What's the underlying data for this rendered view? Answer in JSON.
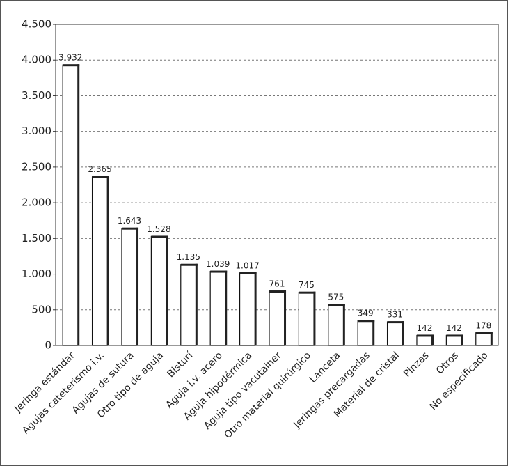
{
  "chart_data": {
    "type": "bar",
    "categories": [
      "Jeringa estándar",
      "Agujas cateterismo i.v.",
      "Agujas de sutura",
      "Otro tipo de aguja",
      "Bisturí",
      "Aguja i.v. acero",
      "Aguja hipodérmica",
      "Aguja tipo vacutainer",
      "Otro material quirúrgico",
      "Lanceta",
      "Jeringas precargadas",
      "Material de cristal",
      "Pinzas",
      "Otros",
      "No especificado"
    ],
    "values": [
      3932,
      2365,
      1643,
      1528,
      1135,
      1039,
      1017,
      761,
      745,
      575,
      349,
      331,
      142,
      142,
      178
    ],
    "value_labels": [
      "3.932",
      "2.365",
      "1.643",
      "1.528",
      "1.135",
      "1.039",
      "1.017",
      "761",
      "745",
      "575",
      "349",
      "331",
      "142",
      "142",
      "178"
    ],
    "color": "#ffffff",
    "ylim": [
      0,
      4500
    ],
    "yticks": [
      0,
      {
        "value": 500,
        "label": "500"
      },
      {
        "value": 1000,
        "label": "1.000"
      },
      {
        "value": 1500,
        "label": "1.500"
      },
      {
        "value": 2000,
        "label": "2.000"
      },
      {
        "value": 2500,
        "label": "2.500"
      },
      {
        "value": 3000,
        "label": "3.000"
      },
      {
        "value": 3500,
        "label": "3.500"
      },
      {
        "value": 4000,
        "label": "4.000"
      },
      {
        "value": 4500,
        "label": "4.500"
      }
    ],
    "grid": true
  }
}
